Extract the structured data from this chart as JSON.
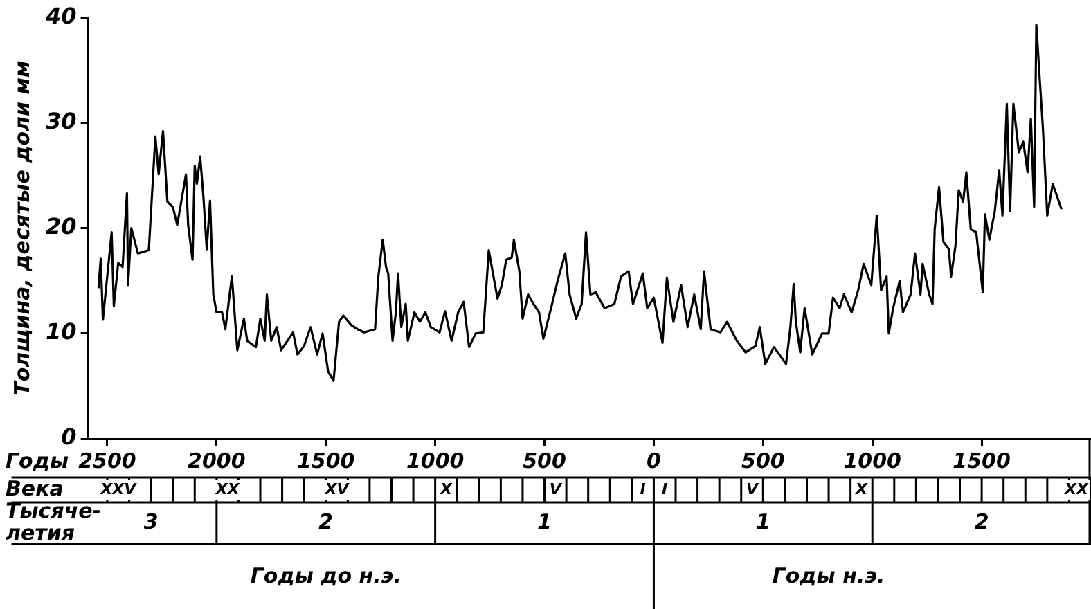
{
  "chart_data": {
    "type": "line",
    "ylabel": "Толщина, десятые доли мм",
    "xlabel": "Годы",
    "color": "#000000",
    "marker": "none",
    "legend": false,
    "xlim": [
      -2590,
      2000
    ],
    "ylim": [
      0,
      40
    ],
    "xticks": [
      {
        "value": -2500,
        "label": "2500"
      },
      {
        "value": -2000,
        "label": "2000"
      },
      {
        "value": -1500,
        "label": "1500"
      },
      {
        "value": -1000,
        "label": "1000"
      },
      {
        "value": -500,
        "label": "500"
      },
      0,
      500,
      1000,
      1500
    ],
    "yticks": [
      0,
      10,
      20,
      30,
      40
    ],
    "x": [
      -2540,
      -2530,
      -2520,
      -2480,
      -2470,
      -2450,
      -2430,
      -2410,
      -2405,
      -2390,
      -2360,
      -2310,
      -2280,
      -2265,
      -2245,
      -2225,
      -2200,
      -2180,
      -2140,
      -2130,
      -2110,
      -2100,
      -2090,
      -2075,
      -2060,
      -2045,
      -2030,
      -2015,
      -2000,
      -1975,
      -1960,
      -1930,
      -1905,
      -1875,
      -1860,
      -1820,
      -1800,
      -1780,
      -1770,
      -1750,
      -1725,
      -1705,
      -1650,
      -1630,
      -1600,
      -1570,
      -1540,
      -1515,
      -1490,
      -1465,
      -1440,
      -1420,
      -1385,
      -1355,
      -1325,
      -1275,
      -1260,
      -1240,
      -1225,
      -1215,
      -1195,
      -1180,
      -1170,
      -1155,
      -1135,
      -1125,
      -1095,
      -1070,
      -1045,
      -1020,
      -980,
      -955,
      -925,
      -895,
      -870,
      -845,
      -815,
      -780,
      -755,
      -715,
      -695,
      -675,
      -650,
      -640,
      -615,
      -600,
      -575,
      -550,
      -525,
      -505,
      -470,
      -440,
      -405,
      -385,
      -355,
      -330,
      -310,
      -290,
      -265,
      -225,
      -180,
      -150,
      -115,
      -95,
      -50,
      -30,
      0,
      40,
      60,
      90,
      125,
      155,
      185,
      215,
      230,
      260,
      305,
      335,
      380,
      420,
      465,
      485,
      510,
      550,
      605,
      625,
      640,
      650,
      670,
      690,
      725,
      770,
      800,
      820,
      850,
      870,
      905,
      935,
      960,
      995,
      1020,
      1040,
      1065,
      1075,
      1095,
      1125,
      1140,
      1175,
      1195,
      1220,
      1230,
      1260,
      1275,
      1285,
      1305,
      1325,
      1350,
      1360,
      1380,
      1395,
      1415,
      1430,
      1450,
      1475,
      1505,
      1515,
      1535,
      1560,
      1580,
      1595,
      1615,
      1630,
      1645,
      1670,
      1690,
      1710,
      1725,
      1740,
      1750,
      1765,
      1780,
      1800,
      1825,
      1865
    ],
    "values": [
      14.3,
      17.1,
      11.3,
      19.6,
      12.6,
      16.7,
      16.3,
      23.3,
      14.6,
      20.0,
      17.6,
      17.9,
      28.7,
      25.1,
      29.2,
      22.5,
      22.0,
      20.3,
      25.1,
      20.3,
      17.0,
      25.9,
      24.2,
      26.8,
      22.9,
      18.0,
      22.6,
      13.7,
      12.0,
      12.0,
      10.4,
      15.4,
      8.4,
      11.4,
      9.3,
      8.7,
      11.4,
      9.3,
      13.7,
      9.3,
      10.6,
      8.4,
      10.1,
      8.0,
      8.8,
      10.6,
      8.0,
      10.0,
      6.4,
      5.5,
      11.1,
      11.7,
      10.8,
      10.4,
      10.1,
      10.4,
      15.4,
      18.9,
      16.3,
      15.7,
      9.3,
      12.0,
      15.7,
      10.6,
      12.8,
      9.3,
      12.0,
      11.1,
      12.0,
      10.6,
      10.1,
      12.1,
      9.3,
      12.0,
      13.0,
      8.7,
      10.0,
      10.1,
      17.9,
      13.3,
      14.6,
      17.0,
      17.2,
      18.9,
      15.9,
      11.4,
      13.7,
      12.8,
      12.0,
      9.5,
      12.4,
      15.0,
      17.6,
      13.7,
      11.4,
      12.8,
      19.6,
      13.7,
      13.9,
      12.4,
      12.8,
      15.4,
      15.9,
      12.8,
      15.7,
      12.4,
      13.4,
      9.1,
      15.3,
      11.1,
      14.6,
      10.6,
      13.7,
      10.4,
      15.9,
      10.4,
      10.1,
      11.1,
      9.3,
      8.2,
      8.8,
      10.6,
      7.1,
      8.7,
      7.1,
      10.6,
      14.7,
      11.1,
      8.2,
      12.4,
      8.0,
      10.0,
      10.0,
      13.4,
      12.4,
      13.7,
      12.0,
      14.1,
      16.6,
      14.6,
      21.2,
      14.1,
      15.4,
      10.0,
      12.4,
      15.0,
      12.0,
      13.7,
      17.6,
      13.7,
      16.6,
      13.7,
      12.8,
      19.9,
      23.9,
      18.7,
      18.0,
      15.4,
      18.3,
      23.6,
      22.5,
      25.3,
      19.9,
      19.6,
      13.9,
      21.3,
      18.9,
      21.6,
      25.5,
      21.2,
      31.8,
      21.6,
      31.8,
      27.2,
      28.2,
      25.3,
      30.4,
      22.0,
      39.3,
      34.3,
      29.5,
      21.2,
      24.2,
      21.8
    ],
    "annotations": [
      "Века",
      "XXV",
      "XX",
      "XV",
      "X",
      "V",
      "I",
      "I",
      "V",
      "X",
      "XX",
      "Тысяче-летия",
      "3",
      "2",
      "1",
      "1",
      "2",
      "Годы до н.э.",
      "Годы н.э."
    ]
  }
}
